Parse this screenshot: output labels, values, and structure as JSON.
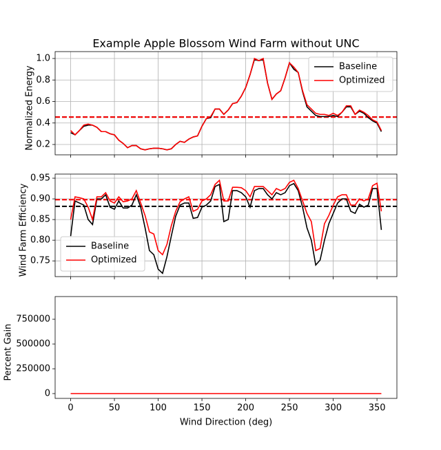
{
  "chart_data": [
    {
      "type": "line",
      "title": "Example Apple Blossom Wind Farm without UNC",
      "ylabel": "Normalized Energy",
      "x": [
        0,
        5,
        10,
        15,
        20,
        25,
        30,
        35,
        40,
        45,
        50,
        55,
        60,
        65,
        70,
        75,
        80,
        85,
        90,
        95,
        100,
        105,
        110,
        115,
        120,
        125,
        130,
        135,
        140,
        145,
        150,
        155,
        160,
        165,
        170,
        175,
        180,
        185,
        190,
        195,
        200,
        205,
        210,
        215,
        220,
        225,
        230,
        235,
        240,
        245,
        250,
        255,
        260,
        265,
        270,
        275,
        280,
        285,
        290,
        295,
        300,
        305,
        310,
        315,
        320,
        325,
        330,
        335,
        340,
        345,
        350,
        355
      ],
      "series": [
        {
          "name": "Baseline",
          "color": "#000000",
          "values": [
            0.31,
            0.29,
            0.33,
            0.37,
            0.38,
            0.38,
            0.36,
            0.32,
            0.32,
            0.3,
            0.29,
            0.24,
            0.21,
            0.17,
            0.19,
            0.19,
            0.16,
            0.15,
            0.16,
            0.165,
            0.165,
            0.16,
            0.15,
            0.16,
            0.2,
            0.23,
            0.22,
            0.25,
            0.27,
            0.28,
            0.37,
            0.44,
            0.45,
            0.53,
            0.53,
            0.48,
            0.52,
            0.58,
            0.59,
            0.65,
            0.73,
            0.85,
            0.99,
            0.98,
            0.99,
            0.77,
            0.62,
            0.67,
            0.7,
            0.82,
            0.96,
            0.9,
            0.87,
            0.69,
            0.55,
            0.51,
            0.47,
            0.46,
            0.46,
            0.46,
            0.47,
            0.46,
            0.5,
            0.55,
            0.55,
            0.48,
            0.51,
            0.49,
            0.45,
            0.42,
            0.4,
            0.32
          ]
        },
        {
          "name": "Optimized",
          "color": "#ff0000",
          "values": [
            0.33,
            0.29,
            0.33,
            0.38,
            0.39,
            0.38,
            0.36,
            0.32,
            0.32,
            0.3,
            0.29,
            0.24,
            0.21,
            0.17,
            0.19,
            0.19,
            0.16,
            0.15,
            0.16,
            0.165,
            0.165,
            0.16,
            0.15,
            0.16,
            0.2,
            0.23,
            0.22,
            0.25,
            0.27,
            0.28,
            0.37,
            0.44,
            0.46,
            0.53,
            0.53,
            0.48,
            0.52,
            0.58,
            0.59,
            0.65,
            0.73,
            0.85,
            1.0,
            0.98,
            1.0,
            0.77,
            0.62,
            0.67,
            0.7,
            0.82,
            0.96,
            0.92,
            0.87,
            0.7,
            0.57,
            0.53,
            0.49,
            0.48,
            0.48,
            0.47,
            0.49,
            0.47,
            0.5,
            0.56,
            0.56,
            0.48,
            0.52,
            0.5,
            0.47,
            0.43,
            0.41,
            0.33
          ]
        }
      ],
      "hlines": [
        {
          "value": 0.455,
          "color": "#000000"
        },
        {
          "value": 0.455,
          "color": "#ff0000"
        }
      ],
      "xlim": [
        -17.75,
        372.75
      ],
      "xticks": [
        0,
        50,
        100,
        150,
        200,
        250,
        300,
        350
      ],
      "xtick_labels": false,
      "ylim": [
        0.104,
        1.064
      ],
      "yticks": [
        0.2,
        0.4,
        0.6,
        0.8,
        {
          "value": 1,
          "label": "1.0"
        }
      ],
      "grid": true,
      "legend": "upper right"
    },
    {
      "type": "line",
      "ylabel": "Wind Farm Efficiency",
      "x": [
        0,
        5,
        10,
        15,
        20,
        25,
        30,
        35,
        40,
        45,
        50,
        55,
        60,
        65,
        70,
        75,
        80,
        85,
        90,
        95,
        100,
        105,
        110,
        115,
        120,
        125,
        130,
        135,
        140,
        145,
        150,
        155,
        160,
        165,
        170,
        175,
        180,
        185,
        190,
        195,
        200,
        205,
        210,
        215,
        220,
        225,
        230,
        235,
        240,
        245,
        250,
        255,
        260,
        265,
        270,
        275,
        280,
        285,
        290,
        295,
        300,
        305,
        310,
        315,
        320,
        325,
        330,
        335,
        340,
        345,
        350,
        355
      ],
      "series": [
        {
          "name": "Baseline",
          "color": "#000000",
          "values": [
            0.81,
            0.895,
            0.89,
            0.885,
            0.85,
            0.838,
            0.9,
            0.9,
            0.91,
            0.88,
            0.875,
            0.895,
            0.878,
            0.878,
            0.885,
            0.91,
            0.88,
            0.83,
            0.775,
            0.765,
            0.73,
            0.72,
            0.76,
            0.81,
            0.858,
            0.885,
            0.89,
            0.89,
            0.853,
            0.855,
            0.88,
            0.885,
            0.895,
            0.93,
            0.935,
            0.845,
            0.85,
            0.92,
            0.92,
            0.915,
            0.905,
            0.88,
            0.92,
            0.925,
            0.925,
            0.91,
            0.9,
            0.915,
            0.91,
            0.915,
            0.932,
            0.937,
            0.92,
            0.88,
            0.83,
            0.8,
            0.74,
            0.752,
            0.8,
            0.84,
            0.865,
            0.89,
            0.9,
            0.9,
            0.87,
            0.865,
            0.887,
            0.88,
            0.885,
            0.925,
            0.925,
            0.825
          ]
        },
        {
          "name": "Optimized",
          "color": "#ff0000",
          "values": [
            0.85,
            0.905,
            0.903,
            0.9,
            0.88,
            0.85,
            0.905,
            0.905,
            0.915,
            0.895,
            0.89,
            0.905,
            0.893,
            0.895,
            0.9,
            0.92,
            0.89,
            0.86,
            0.82,
            0.815,
            0.775,
            0.765,
            0.79,
            0.835,
            0.87,
            0.893,
            0.9,
            0.905,
            0.87,
            0.875,
            0.895,
            0.9,
            0.91,
            0.935,
            0.945,
            0.895,
            0.895,
            0.928,
            0.928,
            0.927,
            0.92,
            0.905,
            0.93,
            0.93,
            0.93,
            0.92,
            0.91,
            0.925,
            0.92,
            0.925,
            0.94,
            0.945,
            0.925,
            0.895,
            0.865,
            0.845,
            0.775,
            0.78,
            0.84,
            0.86,
            0.885,
            0.905,
            0.91,
            0.91,
            0.885,
            0.885,
            0.9,
            0.895,
            0.9,
            0.932,
            0.938,
            0.87
          ]
        }
      ],
      "hlines": [
        {
          "value": 0.882,
          "color": "#000000"
        },
        {
          "value": 0.898,
          "color": "#ff0000"
        }
      ],
      "xlim": [
        -17.75,
        372.75
      ],
      "xticks": [
        0,
        50,
        100,
        150,
        200,
        250,
        300,
        350
      ],
      "xtick_labels": false,
      "ylim": [
        0.712,
        0.96
      ],
      "yticks": [
        0.75,
        {
          "value": 0.8,
          "label": "0.80"
        },
        0.85,
        {
          "value": 0.9,
          "label": "0.90"
        },
        0.95
      ],
      "grid": true,
      "legend": "lower left"
    },
    {
      "type": "line",
      "ylabel": "Percent Gain",
      "xlabel": "Wind Direction (deg)",
      "x": [
        0,
        5,
        10,
        15,
        20,
        25,
        30,
        35,
        40,
        45,
        50,
        55,
        60,
        65,
        70,
        75,
        80,
        85,
        90,
        95,
        100,
        105,
        110,
        115,
        120,
        125,
        130,
        135,
        140,
        145,
        150,
        155,
        160,
        165,
        170,
        175,
        180,
        185,
        190,
        195,
        200,
        205,
        210,
        215,
        220,
        225,
        230,
        235,
        240,
        245,
        250,
        255,
        260,
        265,
        270,
        275,
        280,
        285,
        290,
        295,
        300,
        305,
        310,
        315,
        320,
        325,
        330,
        335,
        340,
        345,
        350,
        355
      ],
      "series": [
        {
          "color": "#ff0000",
          "values": [
            0,
            0,
            0,
            0,
            0,
            0,
            0,
            0,
            0,
            0,
            0,
            0,
            0,
            0,
            0,
            0,
            0,
            0,
            0,
            0,
            0,
            0,
            0,
            0,
            0,
            0,
            0,
            0,
            0,
            0,
            0,
            0,
            0,
            0,
            0,
            0,
            0,
            0,
            0,
            0,
            0,
            0,
            0,
            0,
            0,
            0,
            0,
            0,
            0,
            0,
            0,
            0,
            0,
            0,
            0,
            0,
            0,
            0,
            0,
            0,
            0,
            0,
            0,
            0,
            0,
            0,
            0,
            0,
            0,
            0,
            0,
            0
          ]
        }
      ],
      "xlim": [
        -17.75,
        372.75
      ],
      "xticks": [
        0,
        50,
        100,
        150,
        200,
        250,
        300,
        350
      ],
      "xtick_labels": true,
      "ylim": [
        -48611,
        979166
      ],
      "yticks": [
        0,
        250000,
        500000,
        750000
      ],
      "grid": false
    }
  ]
}
